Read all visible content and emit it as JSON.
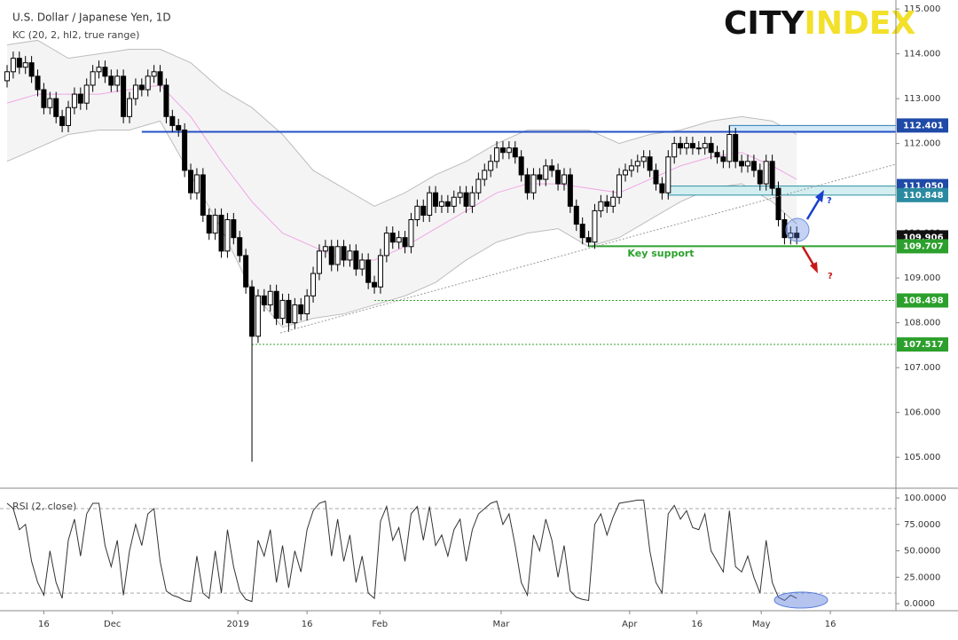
{
  "chart_data": {
    "type": "candlestick",
    "title": "U.S. Dollar / Japanese Yen, 1D",
    "indicator": "KC (20, 2, hl2, true range)",
    "logo": {
      "first": "CITY",
      "second": "INDEX"
    },
    "xlim": [
      -1.16,
      145.2
    ],
    "xticks": [
      {
        "value": 6,
        "label": "16"
      },
      {
        "value": 17.2,
        "label": "Dec"
      },
      {
        "value": 37.7,
        "label": "2019"
      },
      {
        "value": 49,
        "label": "16"
      },
      {
        "value": 60.9,
        "label": "Feb"
      },
      {
        "value": 80.7,
        "label": "Mar"
      },
      {
        "value": 101.7,
        "label": "Apr"
      },
      {
        "value": 112.7,
        "label": "16"
      },
      {
        "value": 123.2,
        "label": "May"
      },
      {
        "value": 134.5,
        "label": "16"
      }
    ],
    "ylim": [
      104.35,
      115.2
    ],
    "yticks": [
      {
        "value": 115,
        "label": "115.000"
      },
      {
        "value": 114,
        "label": "114.000"
      },
      {
        "value": 113,
        "label": "113.000"
      },
      {
        "value": 112,
        "label": "112.000"
      },
      {
        "value": 111,
        "label": "111.000"
      },
      {
        "value": 110,
        "label": "110.000"
      },
      {
        "value": 109,
        "label": "109.000"
      },
      {
        "value": 108,
        "label": "108.000"
      },
      {
        "value": 107,
        "label": "107.000"
      },
      {
        "value": 106,
        "label": "106.000"
      },
      {
        "value": 105,
        "label": "105.000"
      }
    ],
    "up_color": "#ffffff",
    "down_color": "#000000",
    "open": [
      113.4,
      113.6,
      113.9,
      113.7,
      113.8,
      113.5,
      113.2,
      112.8,
      113.0,
      112.6,
      112.4,
      112.8,
      113.1,
      112.9,
      113.3,
      113.6,
      113.7,
      113.5,
      113.3,
      113.5,
      112.6,
      113.0,
      113.3,
      113.2,
      113.5,
      113.6,
      113.3,
      112.6,
      112.4,
      112.3,
      111.4,
      110.9,
      111.3,
      110.4,
      110.0,
      110.4,
      109.6,
      110.3,
      109.9,
      109.5,
      108.8,
      107.7,
      108.6,
      108.4,
      108.7,
      108.1,
      108.5,
      108.0,
      108.4,
      108.2,
      108.6,
      109.1,
      109.6,
      109.7,
      109.3,
      109.7,
      109.4,
      109.6,
      109.2,
      109.4,
      108.9,
      108.8,
      109.5,
      110.0,
      109.8,
      109.9,
      109.7,
      110.3,
      110.6,
      110.4,
      110.9,
      110.6,
      110.7,
      110.6,
      110.8,
      110.9,
      110.6,
      110.9,
      111.2,
      111.4,
      111.6,
      111.9,
      111.8,
      111.9,
      111.7,
      111.3,
      110.9,
      111.3,
      111.2,
      111.5,
      111.4,
      111.1,
      111.3,
      110.6,
      110.2,
      109.9,
      109.8,
      110.5,
      110.7,
      110.6,
      110.8,
      111.3,
      111.4,
      111.5,
      111.6,
      111.7,
      111.4,
      111.1,
      110.9,
      111.7,
      112.0,
      111.9,
      112.0,
      111.9,
      111.9,
      112.0,
      111.8,
      111.7,
      111.6,
      112.2,
      111.6,
      111.5,
      111.6,
      111.4,
      111.1,
      111.6,
      111.0,
      110.3,
      109.9,
      110.0
    ],
    "high": [
      113.75,
      114.05,
      114.05,
      113.95,
      113.95,
      113.65,
      113.35,
      113.15,
      113.15,
      112.75,
      112.95,
      113.25,
      113.25,
      113.45,
      113.75,
      113.85,
      113.85,
      113.65,
      113.65,
      113.65,
      113.15,
      113.45,
      113.45,
      113.65,
      113.75,
      113.75,
      113.45,
      112.75,
      112.55,
      112.45,
      111.55,
      111.45,
      111.45,
      110.55,
      110.55,
      110.55,
      110.45,
      110.45,
      110.05,
      109.65,
      108.95,
      108.75,
      108.75,
      108.85,
      108.85,
      108.65,
      108.65,
      108.55,
      108.55,
      108.75,
      109.25,
      109.75,
      109.85,
      109.85,
      109.85,
      109.85,
      109.75,
      109.75,
      109.55,
      109.55,
      109.05,
      109.65,
      110.15,
      110.15,
      110.05,
      110.05,
      110.45,
      110.75,
      110.75,
      111.05,
      111.05,
      110.85,
      110.85,
      110.95,
      111.05,
      111.05,
      111.05,
      111.35,
      111.55,
      111.75,
      112.05,
      112.05,
      112.05,
      112.05,
      111.85,
      111.45,
      111.45,
      111.45,
      111.65,
      111.65,
      111.55,
      111.45,
      111.45,
      110.75,
      110.35,
      110.05,
      110.65,
      110.85,
      110.85,
      110.95,
      111.45,
      111.55,
      111.65,
      111.75,
      111.85,
      111.85,
      111.55,
      111.25,
      111.85,
      112.15,
      112.15,
      112.15,
      112.15,
      112.05,
      112.15,
      112.15,
      111.95,
      111.85,
      112.4,
      112.35,
      111.75,
      111.75,
      111.75,
      111.55,
      111.75,
      111.75,
      111.15,
      110.45,
      110.15,
      110.15
    ],
    "low": [
      113.25,
      113.45,
      113.55,
      113.55,
      113.35,
      113.05,
      112.65,
      112.65,
      112.45,
      112.25,
      112.25,
      112.65,
      112.75,
      112.75,
      113.15,
      113.45,
      113.35,
      113.15,
      113.15,
      112.45,
      112.45,
      112.85,
      113.05,
      113.05,
      113.35,
      113.15,
      112.45,
      112.25,
      112.15,
      111.25,
      110.75,
      110.75,
      110.25,
      109.85,
      109.85,
      109.45,
      109.45,
      109.75,
      109.35,
      108.65,
      104.9,
      107.55,
      108.25,
      108.25,
      107.95,
      107.95,
      107.8,
      107.85,
      108.05,
      108.05,
      108.45,
      108.95,
      109.45,
      109.15,
      109.15,
      109.25,
      109.25,
      109.05,
      109.05,
      108.75,
      108.65,
      108.65,
      109.35,
      109.65,
      109.65,
      109.55,
      109.55,
      110.15,
      110.25,
      110.25,
      110.45,
      110.45,
      110.45,
      110.45,
      110.65,
      110.45,
      110.45,
      110.75,
      111.05,
      111.25,
      111.45,
      111.65,
      111.65,
      111.55,
      111.15,
      110.75,
      110.75,
      111.05,
      111.05,
      111.25,
      110.95,
      110.95,
      110.45,
      110.05,
      109.75,
      109.7,
      109.65,
      110.35,
      110.45,
      110.45,
      110.65,
      111.15,
      111.25,
      111.35,
      111.45,
      111.25,
      110.95,
      110.75,
      110.75,
      111.55,
      111.75,
      111.75,
      111.75,
      111.75,
      111.75,
      111.65,
      111.55,
      111.45,
      111.45,
      111.45,
      111.35,
      111.35,
      111.25,
      110.95,
      110.95,
      110.85,
      110.15,
      109.75,
      109.75,
      109.75
    ],
    "close": [
      113.6,
      113.9,
      113.7,
      113.8,
      113.5,
      113.2,
      112.8,
      113.0,
      112.6,
      112.4,
      112.8,
      113.1,
      112.9,
      113.3,
      113.6,
      113.7,
      113.5,
      113.3,
      113.5,
      112.6,
      113.0,
      113.3,
      113.2,
      113.5,
      113.6,
      113.3,
      112.6,
      112.4,
      112.3,
      111.4,
      110.9,
      111.3,
      110.4,
      110.0,
      110.4,
      109.6,
      110.3,
      109.9,
      109.5,
      108.8,
      107.7,
      108.6,
      108.4,
      108.7,
      108.1,
      108.5,
      108.0,
      108.4,
      108.2,
      108.6,
      109.1,
      109.6,
      109.7,
      109.3,
      109.7,
      109.4,
      109.6,
      109.2,
      109.4,
      108.9,
      108.8,
      109.5,
      110.0,
      109.8,
      109.9,
      109.7,
      110.3,
      110.6,
      110.4,
      110.9,
      110.6,
      110.7,
      110.6,
      110.8,
      110.9,
      110.6,
      110.9,
      111.2,
      111.4,
      111.6,
      111.9,
      111.8,
      111.9,
      111.7,
      111.3,
      110.9,
      111.3,
      111.2,
      111.5,
      111.4,
      111.1,
      111.3,
      110.6,
      110.2,
      109.9,
      109.8,
      110.5,
      110.7,
      110.6,
      110.8,
      111.3,
      111.4,
      111.5,
      111.6,
      111.7,
      111.4,
      111.1,
      110.9,
      111.7,
      112.0,
      111.9,
      112.0,
      111.9,
      111.9,
      112.0,
      111.8,
      111.7,
      111.6,
      112.2,
      111.6,
      111.5,
      111.6,
      111.4,
      111.1,
      111.6,
      111.0,
      110.3,
      109.9,
      110.0,
      109.9
    ],
    "keltner": {
      "x": [
        0,
        5,
        10,
        15,
        20,
        25,
        30,
        35,
        40,
        45,
        50,
        55,
        60,
        65,
        70,
        75,
        80,
        85,
        90,
        95,
        100,
        105,
        110,
        115,
        120,
        125,
        129
      ],
      "upper": [
        114.2,
        114.3,
        113.9,
        114.0,
        114.1,
        114.1,
        113.8,
        113.2,
        112.8,
        112.2,
        111.4,
        111.0,
        110.6,
        110.9,
        111.3,
        111.6,
        112.0,
        112.3,
        112.3,
        112.3,
        112.0,
        112.2,
        112.3,
        112.5,
        112.6,
        112.5,
        112.2
      ],
      "middle": [
        112.9,
        113.1,
        113.1,
        113.1,
        113.2,
        113.3,
        112.6,
        111.6,
        110.7,
        110.0,
        109.7,
        109.4,
        109.4,
        109.7,
        110.1,
        110.5,
        110.9,
        111.1,
        111.1,
        111.0,
        110.9,
        111.2,
        111.5,
        111.7,
        111.8,
        111.5,
        111.2
      ],
      "lower": [
        111.6,
        111.9,
        112.2,
        112.3,
        112.3,
        112.5,
        111.3,
        110.1,
        108.7,
        107.9,
        108.1,
        108.2,
        108.4,
        108.6,
        108.9,
        109.4,
        109.8,
        110.0,
        110.1,
        109.7,
        109.9,
        110.3,
        110.7,
        111.0,
        111.1,
        110.7,
        110.2
      ],
      "band_color": "#f4f4f4",
      "edge_color": "#bdbdbd",
      "middle_color": "#f0a6e6"
    },
    "zones": [
      {
        "top": 112.401,
        "bottom": 112.26,
        "x_start": 118,
        "color": "#d3e9f7",
        "edge": "#2f7fb6"
      },
      {
        "top": 111.05,
        "bottom": 110.848,
        "x_start": 108,
        "color": "#d3eef0",
        "edge": "#2f8fa6"
      }
    ],
    "lines": [
      {
        "value": 112.26,
        "x_start": 22,
        "color": "#2350c8",
        "dotted": false
      },
      {
        "value": 109.707,
        "x_start": 95,
        "color": "#2ca02c",
        "dotted": false
      },
      {
        "value": 108.498,
        "x_start": 60,
        "color": "#2ca02c",
        "dotted": true
      },
      {
        "value": 107.517,
        "x_start": 40,
        "color": "#2ca02c",
        "dotted": true
      }
    ],
    "price_labels": [
      {
        "value": 112.401,
        "label": "112.401",
        "color": "#1f4aa8"
      },
      {
        "value": 111.05,
        "label": "111.050",
        "color": "#1f4aa8"
      },
      {
        "value": 110.848,
        "label": "110.848",
        "color": "#2a8aa0"
      },
      {
        "value": 109.906,
        "label": "109.906",
        "color": "#111111"
      },
      {
        "value": 109.707,
        "label": "109.707",
        "color": "#2ca02c"
      },
      {
        "value": 108.498,
        "label": "108.498",
        "color": "#2ca02c"
      },
      {
        "value": 107.517,
        "label": "107.517",
        "color": "#2ca02c"
      }
    ],
    "annotations": {
      "key_support": "Key support",
      "up_question": "?",
      "down_question": "?"
    },
    "rsi": {
      "label": "RSI (2, close)",
      "ylim": [
        -6.7,
        107.6
      ],
      "yticks": [
        {
          "value": 100,
          "label": "100.0000"
        },
        {
          "value": 75,
          "label": "75.0000"
        },
        {
          "value": 50,
          "label": "50.0000"
        },
        {
          "value": 25,
          "label": "25.0000"
        },
        {
          "value": 0,
          "label": "0.0000"
        }
      ],
      "levels": [
        90,
        10
      ],
      "color": "#333333",
      "values": [
        95,
        90,
        70,
        75,
        40,
        20,
        8,
        50,
        20,
        5,
        60,
        80,
        45,
        85,
        95,
        95,
        55,
        35,
        60,
        8,
        50,
        75,
        55,
        85,
        90,
        40,
        12,
        8,
        6,
        3,
        2,
        45,
        10,
        5,
        50,
        10,
        70,
        35,
        12,
        4,
        2,
        60,
        45,
        70,
        20,
        55,
        15,
        50,
        30,
        70,
        88,
        95,
        97,
        45,
        80,
        40,
        65,
        20,
        45,
        10,
        5,
        78,
        92,
        60,
        72,
        40,
        85,
        92,
        60,
        92,
        55,
        65,
        45,
        70,
        80,
        40,
        70,
        85,
        90,
        95,
        97,
        75,
        85,
        55,
        20,
        8,
        65,
        50,
        80,
        60,
        25,
        55,
        12,
        6,
        4,
        3,
        75,
        85,
        65,
        82,
        95,
        96,
        97,
        98,
        98,
        50,
        20,
        10,
        85,
        93,
        80,
        88,
        72,
        70,
        85,
        50,
        40,
        30,
        88,
        35,
        30,
        45,
        25,
        10,
        60,
        20,
        6,
        3,
        8,
        5
      ]
    }
  }
}
